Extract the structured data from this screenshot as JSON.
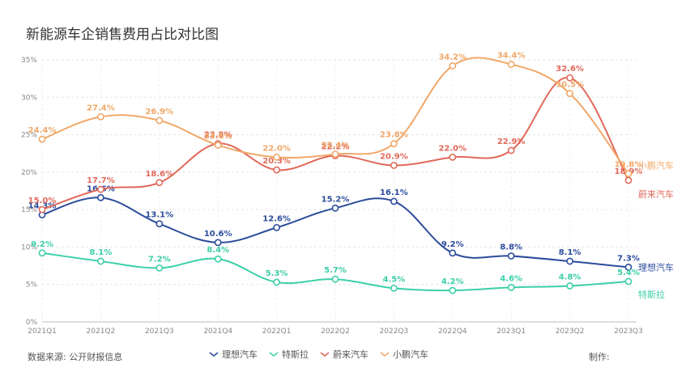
{
  "chart_data": {
    "type": "line",
    "title": "新能源车企销售费用占比对比图",
    "source": "数据来源: 公开财报信息",
    "maker": "制作:",
    "categories": [
      "2021Q1",
      "2021Q2",
      "2021Q3",
      "2021Q4",
      "2022Q1",
      "2022Q2",
      "2022Q3",
      "2022Q4",
      "2023Q1",
      "2023Q2",
      "2023Q3"
    ],
    "y_ticks": [
      "0%",
      "5%",
      "10%",
      "15%",
      "20%",
      "25%",
      "30%",
      "35%"
    ],
    "ylim": [
      0,
      35
    ],
    "xlabel": "",
    "ylabel": "",
    "grid": true,
    "legend_position": "bottom-center",
    "series": [
      {
        "name": "理想汽车",
        "color": "#2c4c9c",
        "values": [
          14.3,
          16.6,
          13.1,
          10.6,
          12.6,
          15.2,
          16.1,
          9.2,
          8.8,
          8.1,
          7.3
        ],
        "labels": [
          "14.3%",
          "16.6%",
          "13.1%",
          "10.6%",
          "12.6%",
          "15.2%",
          "16.1%",
          "9.2%",
          "8.8%",
          "8.1%",
          "7.3%"
        ]
      },
      {
        "name": "特斯拉",
        "color": "#3ccfa8",
        "values": [
          9.2,
          8.1,
          7.2,
          8.4,
          5.3,
          5.7,
          4.5,
          4.2,
          4.6,
          4.8,
          5.4
        ],
        "labels": [
          "9.2%",
          "8.1%",
          "7.2%",
          "8.4%",
          "5.3%",
          "5.7%",
          "4.5%",
          "4.2%",
          "4.6%",
          "4.8%",
          "5.4%"
        ]
      },
      {
        "name": "蔚来汽车",
        "color": "#e0695a",
        "values": [
          15.0,
          17.7,
          18.6,
          23.8,
          20.3,
          22.2,
          20.9,
          22.0,
          22.9,
          32.6,
          18.9
        ],
        "labels": [
          "15.0%",
          "17.7%",
          "18.6%",
          "23.8%",
          "20.3%",
          "22.2%",
          "20.9%",
          "22.0%",
          "22.9%",
          "32.6%",
          "18.9%"
        ]
      },
      {
        "name": "小鹏汽车",
        "color": "#f0a86a",
        "values": [
          24.4,
          27.4,
          26.9,
          23.6,
          22.0,
          22.4,
          23.8,
          34.2,
          34.4,
          30.5,
          19.8
        ],
        "labels": [
          "24.4%",
          "27.4%",
          "26.9%",
          "23.6%",
          "22.0%",
          "22.4%",
          "23.8%",
          "34.2%",
          "34.4%",
          "30.5%",
          "19.8%"
        ]
      }
    ]
  }
}
